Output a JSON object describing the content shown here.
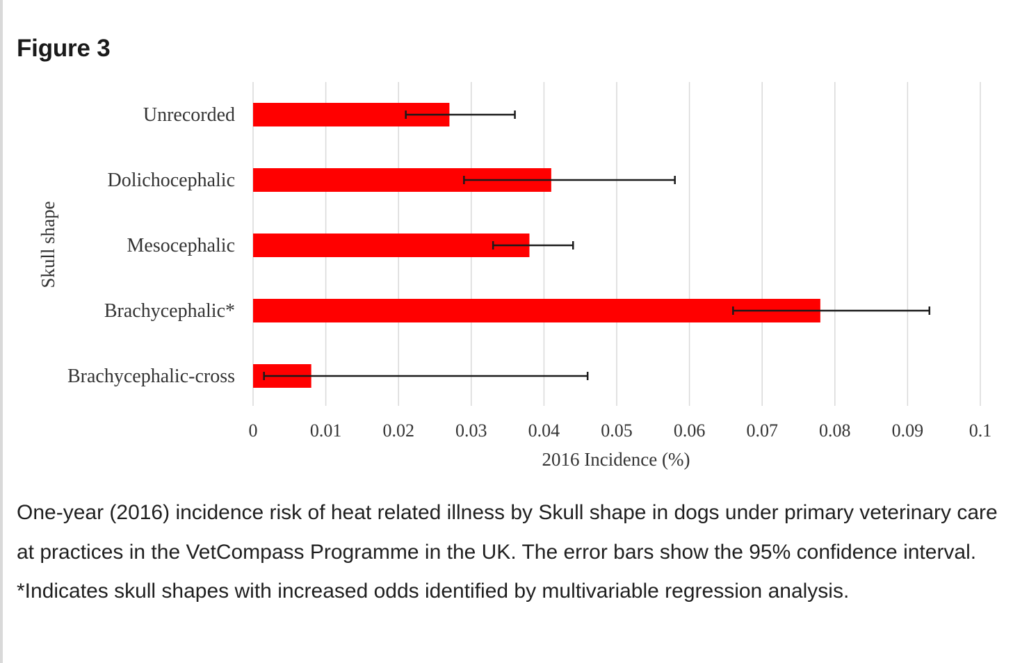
{
  "figure": {
    "title": "Figure 3",
    "caption": "One-year (2016) incidence risk of heat related illness by Skull shape in dogs under primary veterinary care at practices in the VetCompass Programme in the UK. The error bars show the 95% confidence interval. *Indicates skull shapes with increased odds identified by multivariable regression analysis."
  },
  "colors": {
    "bar": "#ff0000",
    "error_bar": "#1a1a1a",
    "grid": "#d9d9d9"
  },
  "chart_data": {
    "type": "bar",
    "orientation": "horizontal",
    "title": "",
    "xlabel": "2016 Incidence (%)",
    "ylabel": "Skull shape",
    "categories": [
      "Unrecorded",
      "Dolichocephalic",
      "Mesocephalic",
      "Brachycephalic*",
      "Brachycephalic-cross"
    ],
    "values": [
      0.027,
      0.041,
      0.038,
      0.078,
      0.008
    ],
    "ci_lower": [
      0.021,
      0.029,
      0.033,
      0.066,
      0.0015
    ],
    "ci_upper": [
      0.036,
      0.058,
      0.044,
      0.093,
      0.046
    ],
    "xlim": [
      0,
      0.1
    ],
    "xticks": [
      "0",
      "0.01",
      "0.02",
      "0.03",
      "0.04",
      "0.05",
      "0.06",
      "0.07",
      "0.08",
      "0.09",
      "0.1"
    ],
    "grid": "vertical",
    "legend": "none"
  }
}
